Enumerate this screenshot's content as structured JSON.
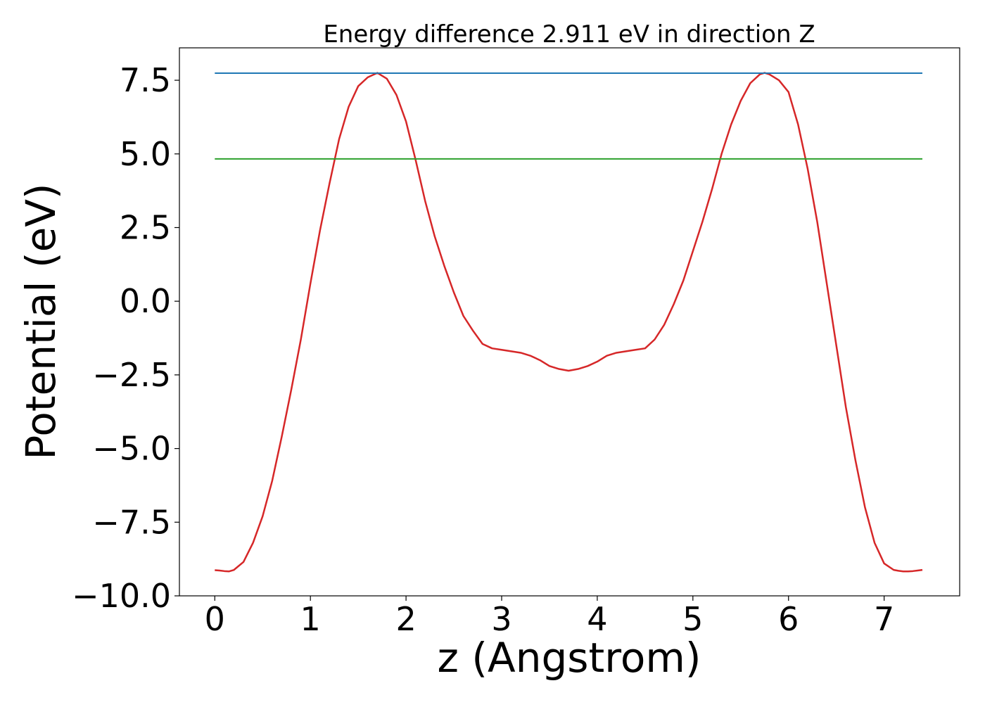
{
  "chart_data": {
    "type": "line",
    "title": "Energy difference 2.911 eV in direction Z",
    "xlabel": "z (Angstrom)",
    "ylabel": "Potential (eV)",
    "xlim": [
      -0.37,
      7.79
    ],
    "ylim": [
      -10.0,
      8.6
    ],
    "x_ticks": [
      0,
      1,
      2,
      3,
      4,
      5,
      6,
      7
    ],
    "x_tick_labels": [
      "0",
      "1",
      "2",
      "3",
      "4",
      "5",
      "6",
      "7"
    ],
    "y_ticks": [
      -10.0,
      -7.5,
      -5.0,
      -2.5,
      0.0,
      2.5,
      5.0,
      7.5
    ],
    "y_tick_labels": [
      "−10.0",
      "−7.5",
      "−5.0",
      "−2.5",
      "0.0",
      "2.5",
      "5.0",
      "7.5"
    ],
    "grid": false,
    "series": [
      {
        "color": "#d62728",
        "x": [
          0.0,
          0.05,
          0.1,
          0.15,
          0.2,
          0.3,
          0.4,
          0.5,
          0.6,
          0.7,
          0.8,
          0.9,
          1.0,
          1.1,
          1.2,
          1.3,
          1.4,
          1.5,
          1.6,
          1.7,
          1.8,
          1.9,
          2.0,
          2.1,
          2.2,
          2.3,
          2.4,
          2.5,
          2.6,
          2.7,
          2.8,
          2.9,
          3.0,
          3.1,
          3.2,
          3.3,
          3.4,
          3.5,
          3.6,
          3.7,
          3.8,
          3.9,
          4.0,
          4.1,
          4.2,
          4.3,
          4.4,
          4.5,
          4.6,
          4.7,
          4.8,
          4.9,
          5.0,
          5.1,
          5.2,
          5.3,
          5.4,
          5.5,
          5.6,
          5.7,
          5.75,
          5.8,
          5.9,
          6.0,
          6.1,
          6.2,
          6.3,
          6.4,
          6.5,
          6.6,
          6.7,
          6.8,
          6.9,
          7.0,
          7.1,
          7.15,
          7.2,
          7.25,
          7.3,
          7.35,
          7.4
        ],
        "values": [
          -9.13,
          -9.14,
          -9.16,
          -9.17,
          -9.12,
          -8.85,
          -8.2,
          -7.3,
          -6.1,
          -4.6,
          -3.0,
          -1.3,
          0.6,
          2.4,
          4.0,
          5.5,
          6.6,
          7.3,
          7.6,
          7.75,
          7.55,
          7.0,
          6.1,
          4.8,
          3.4,
          2.2,
          1.2,
          0.3,
          -0.5,
          -1.0,
          -1.45,
          -1.6,
          -1.65,
          -1.7,
          -1.75,
          -1.85,
          -2.0,
          -2.2,
          -2.3,
          -2.36,
          -2.3,
          -2.2,
          -2.05,
          -1.85,
          -1.75,
          -1.7,
          -1.65,
          -1.6,
          -1.3,
          -0.8,
          -0.1,
          0.7,
          1.7,
          2.7,
          3.8,
          5.0,
          6.0,
          6.8,
          7.4,
          7.7,
          7.75,
          7.7,
          7.5,
          7.1,
          6.0,
          4.5,
          2.7,
          0.6,
          -1.5,
          -3.6,
          -5.4,
          -7.0,
          -8.2,
          -8.9,
          -9.12,
          -9.15,
          -9.17,
          -9.17,
          -9.16,
          -9.14,
          -9.12
        ]
      },
      {
        "color": "#1f77b4",
        "x": [
          0.0,
          7.4
        ],
        "values": [
          7.74,
          7.74
        ]
      },
      {
        "color": "#2ca02c",
        "x": [
          0.0,
          7.4
        ],
        "values": [
          4.83,
          4.83
        ]
      }
    ]
  }
}
